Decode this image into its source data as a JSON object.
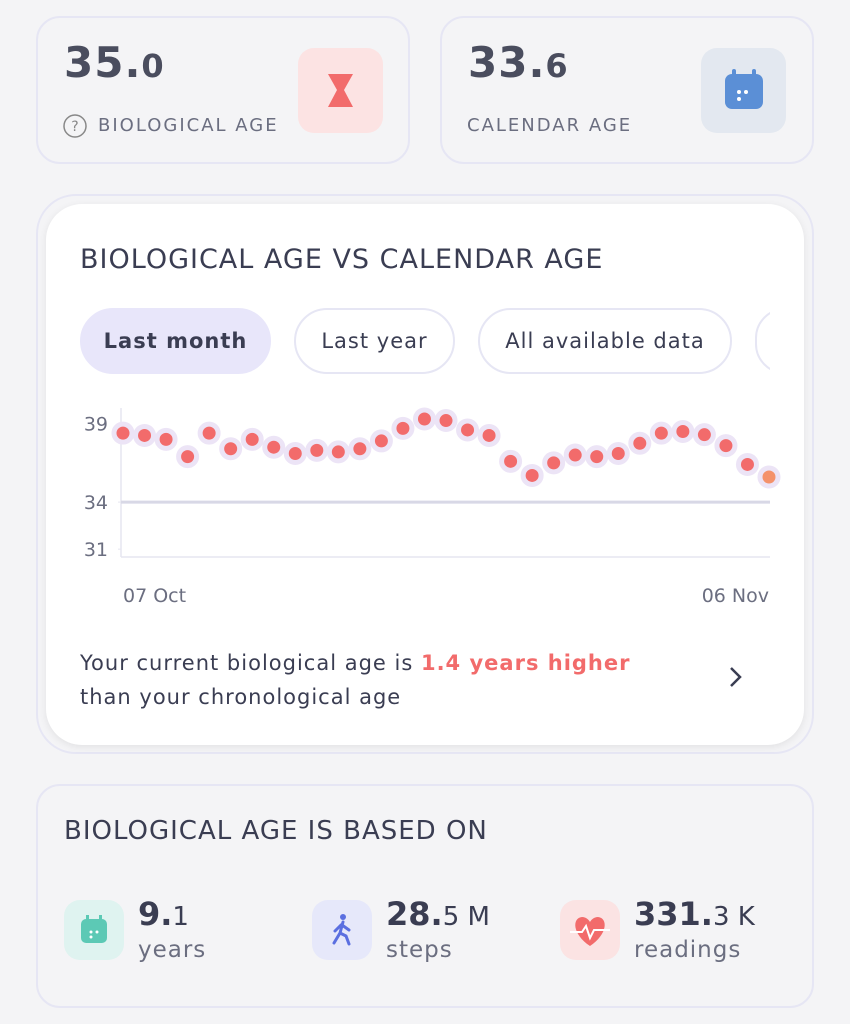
{
  "stats": [
    {
      "major": "35.",
      "minor": "0",
      "label": "BIOLOGICAL AGE"
    },
    {
      "major": "33.",
      "minor": "6",
      "label": "CALENDAR AGE"
    }
  ],
  "chart_card": {
    "tabs": [
      "Last month",
      "Last year",
      "All available data"
    ],
    "message": {
      "before": "Your current biological age is ",
      "highlight": "1.4 years higher",
      "after": "than your chronological age"
    }
  },
  "chart_data": {
    "type": "scatter",
    "title": "BIOLOGICAL AGE VS CALENDAR AGE",
    "categories": [
      "07 Oct",
      null,
      null,
      null,
      null,
      null,
      null,
      null,
      null,
      null,
      null,
      null,
      null,
      null,
      null,
      null,
      null,
      null,
      null,
      null,
      null,
      null,
      null,
      null,
      null,
      null,
      null,
      null,
      null,
      null,
      "06 Nov"
    ],
    "series": [
      {
        "color": "#f26b6b",
        "highlight_color": "#f4926b",
        "values": [
          38.4,
          38.25,
          38.0,
          36.9,
          38.4,
          37.4,
          38.0,
          37.5,
          37.1,
          37.3,
          37.2,
          37.4,
          37.9,
          38.7,
          39.3,
          39.2,
          38.6,
          38.25,
          36.6,
          35.7,
          36.5,
          37.0,
          36.9,
          37.1,
          37.75,
          38.4,
          38.5,
          38.3,
          37.6,
          36.4,
          35.6
        ]
      }
    ],
    "reference_line": {
      "value": 34,
      "color": "#d8d8e6"
    },
    "ylim": [
      30.5,
      40
    ],
    "yticks": [
      39,
      34,
      31
    ]
  },
  "based_on": {
    "title": "BIOLOGICAL AGE IS BASED ON",
    "items": [
      {
        "major": "9.",
        "minor": "1",
        "label": "years"
      },
      {
        "major": "28.",
        "minor": "5 M",
        "label": "steps"
      },
      {
        "major": "331.",
        "minor": "3 K",
        "label": "readings"
      }
    ]
  }
}
